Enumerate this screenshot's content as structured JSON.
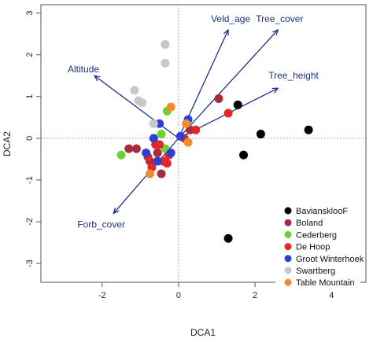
{
  "chart_data": {
    "type": "scatter",
    "title": "",
    "xlabel": "DCA1",
    "ylabel": "DCA2",
    "xlim": [
      -3.6,
      4.9
    ],
    "ylim": [
      -3.45,
      3.2
    ],
    "x_ticks": [
      -2,
      0,
      2,
      4
    ],
    "y_ticks": [
      -3,
      -2,
      -1,
      0,
      1,
      2,
      3
    ],
    "reference_lines": {
      "x": 0,
      "y": 0
    },
    "grid": false,
    "legend_position": "bottom-right",
    "vector_color": "#1b2f8a",
    "series": [
      {
        "name": "BaviansklooF",
        "color": "#000000",
        "points": [
          [
            1.55,
            0.8
          ],
          [
            2.15,
            0.1
          ],
          [
            1.7,
            -0.4
          ],
          [
            3.4,
            0.2
          ],
          [
            1.3,
            -2.4
          ]
        ]
      },
      {
        "name": "Boland",
        "color": "#a52d3c",
        "points": [
          [
            1.05,
            0.95
          ],
          [
            -1.1,
            -0.25
          ],
          [
            -1.3,
            -0.25
          ],
          [
            -0.6,
            -0.15
          ],
          [
            -0.55,
            -0.35
          ],
          [
            -0.75,
            -0.55
          ],
          [
            -0.45,
            -0.85
          ],
          [
            0.3,
            0.2
          ]
        ]
      },
      {
        "name": "Cederberg",
        "color": "#6ad233",
        "points": [
          [
            -0.3,
            0.65
          ],
          [
            -1.5,
            -0.4
          ],
          [
            -0.45,
            0.1
          ],
          [
            -0.35,
            -0.25
          ]
        ]
      },
      {
        "name": "De Hoop",
        "color": "#e2272a",
        "points": [
          [
            1.3,
            0.6
          ],
          [
            0.15,
            0.0
          ],
          [
            0.45,
            0.2
          ],
          [
            -0.5,
            -0.15
          ],
          [
            -0.4,
            -0.55
          ],
          [
            -0.7,
            -0.7
          ],
          [
            -0.8,
            -0.45
          ],
          [
            -0.25,
            -0.4
          ],
          [
            -0.6,
            -0.15
          ],
          [
            -0.3,
            -0.6
          ]
        ]
      },
      {
        "name": "Groot Winterhoek",
        "color": "#2f3fd6",
        "points": [
          [
            -0.5,
            0.35
          ],
          [
            0.25,
            0.45
          ],
          [
            -0.55,
            -0.55
          ],
          [
            -0.2,
            -0.35
          ],
          [
            -0.85,
            -0.35
          ],
          [
            -0.65,
            0.0
          ],
          [
            0.05,
            0.05
          ]
        ]
      },
      {
        "name": "Swartberg",
        "color": "#c8c8c8",
        "points": [
          [
            -0.35,
            2.25
          ],
          [
            -0.35,
            1.8
          ],
          [
            -1.15,
            1.15
          ],
          [
            -1.05,
            0.9
          ],
          [
            -0.95,
            0.85
          ],
          [
            -0.65,
            0.35
          ]
        ]
      },
      {
        "name": "Table Mountain",
        "color": "#f28b2b",
        "points": [
          [
            -0.2,
            0.75
          ],
          [
            0.25,
            -0.1
          ],
          [
            -0.75,
            -0.85
          ],
          [
            0.2,
            0.35
          ]
        ]
      }
    ],
    "vectors": [
      {
        "label": "Veld_age",
        "from": [
          0,
          0
        ],
        "to": [
          1.3,
          2.6
        ]
      },
      {
        "label": "Tree_cover",
        "from": [
          0,
          0
        ],
        "to": [
          2.6,
          2.6
        ]
      },
      {
        "label": "Altitude",
        "from": [
          0,
          0
        ],
        "to": [
          -2.2,
          1.5
        ]
      },
      {
        "label": "Tree_height",
        "from": [
          0,
          0
        ],
        "to": [
          2.6,
          1.2
        ]
      },
      {
        "label": "Forb_cover",
        "from": [
          0,
          0
        ],
        "to": [
          -1.7,
          -1.8
        ]
      }
    ]
  }
}
